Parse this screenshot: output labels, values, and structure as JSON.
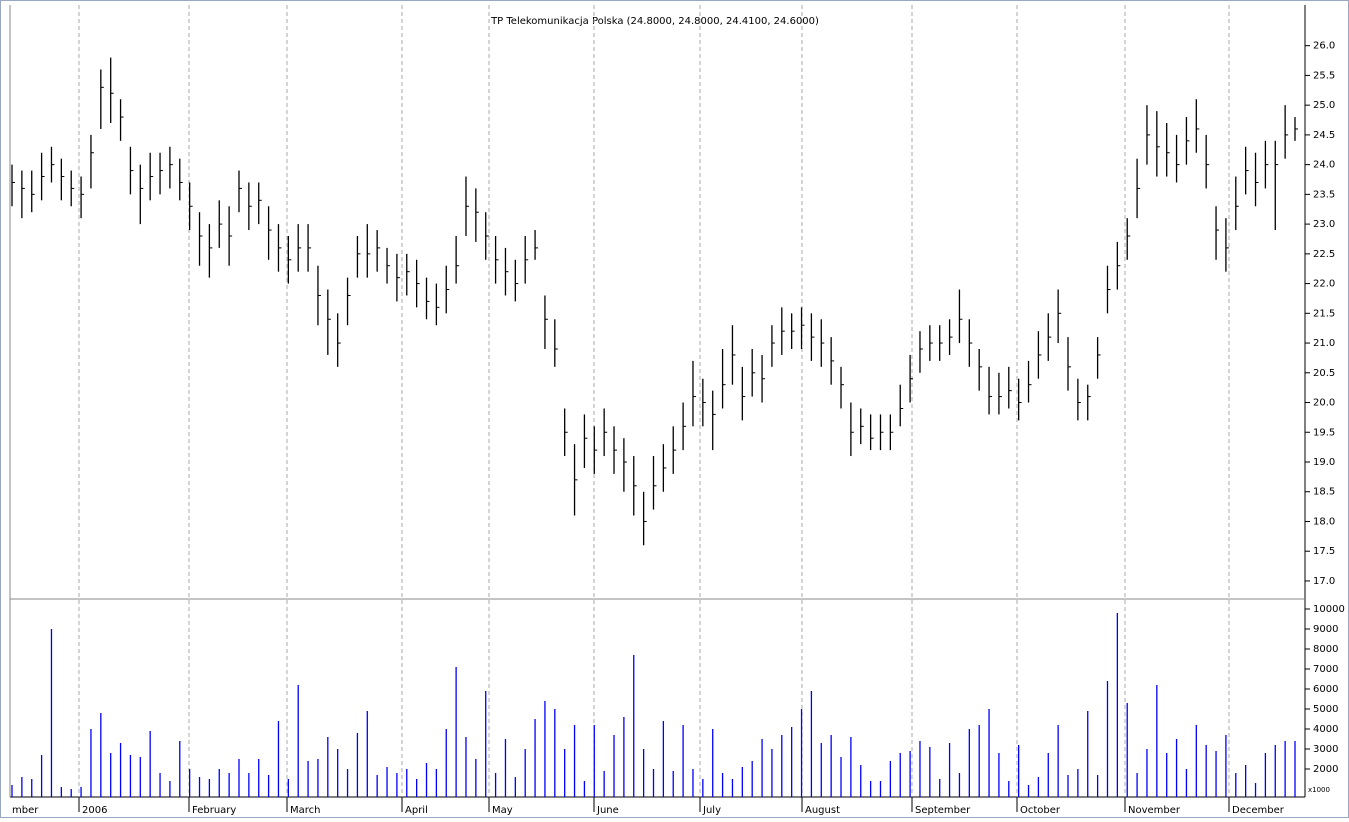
{
  "chart_data": {
    "type": "ohlc",
    "title": "TP Telekomunikacja Polska (24.8000, 24.8000, 24.4100, 24.6000)",
    "x_labels": [
      "mber",
      "2006",
      "February",
      "March",
      "April",
      "May",
      "June",
      "July",
      "August",
      "September",
      "October",
      "November",
      "December"
    ],
    "price_color": "#000000",
    "volume_color": "#0000ff",
    "close": [
      23.7,
      23.6,
      23.5,
      23.8,
      24.0,
      23.8,
      23.6,
      23.5,
      24.2,
      25.3,
      25.2,
      24.8,
      23.9,
      23.6,
      23.8,
      23.9,
      24.0,
      23.7,
      23.3,
      22.8,
      22.6,
      23.0,
      22.8,
      23.6,
      23.3,
      23.4,
      22.9,
      22.6,
      22.4,
      22.6,
      22.6,
      21.8,
      21.4,
      21.0,
      21.8,
      22.5,
      22.5,
      22.6,
      22.3,
      22.1,
      22.2,
      22.0,
      21.7,
      21.6,
      21.9,
      22.3,
      23.3,
      23.2,
      22.8,
      22.4,
      22.2,
      22.0,
      22.4,
      22.6,
      21.4,
      20.9,
      19.5,
      18.7,
      19.4,
      19.2,
      19.5,
      19.2,
      19.0,
      18.6,
      18.0,
      18.6,
      18.9,
      19.2,
      19.6,
      20.1,
      20.0,
      19.8,
      20.3,
      20.8,
      20.1,
      20.5,
      20.4,
      21.0,
      21.2,
      21.2,
      21.3,
      21.1,
      21.0,
      20.7,
      20.3,
      19.5,
      19.6,
      19.4,
      19.5,
      19.5,
      19.9,
      20.4,
      20.9,
      21.0,
      21.0,
      21.1,
      21.4,
      21.0,
      20.6,
      20.1,
      20.1,
      20.2,
      20.0,
      20.3,
      20.8,
      21.1,
      21.5,
      20.6,
      20.0,
      20.1,
      20.8,
      21.9,
      22.3,
      22.8,
      23.6,
      24.5,
      24.3,
      24.2,
      24.0,
      24.4,
      24.6,
      24.0,
      22.9,
      22.6,
      23.3,
      23.9,
      23.7,
      24.0,
      24.0,
      24.5,
      24.6
    ],
    "high": [
      24.0,
      23.9,
      23.9,
      24.2,
      24.3,
      24.1,
      23.9,
      23.8,
      24.5,
      25.6,
      25.8,
      25.1,
      24.3,
      24.0,
      24.2,
      24.2,
      24.3,
      24.1,
      23.7,
      23.2,
      23.0,
      23.4,
      23.3,
      23.9,
      23.7,
      23.7,
      23.3,
      23.0,
      22.8,
      23.0,
      23.0,
      22.3,
      21.9,
      21.5,
      22.1,
      22.8,
      23.0,
      22.9,
      22.6,
      22.5,
      22.5,
      22.4,
      22.1,
      22.0,
      22.3,
      22.8,
      23.8,
      23.6,
      23.2,
      22.8,
      22.6,
      22.4,
      22.8,
      22.9,
      21.8,
      21.4,
      19.9,
      19.3,
      19.8,
      19.6,
      19.9,
      19.6,
      19.4,
      19.1,
      18.5,
      19.1,
      19.3,
      19.6,
      20.0,
      20.7,
      20.4,
      20.2,
      20.9,
      21.3,
      20.6,
      20.9,
      20.8,
      21.3,
      21.6,
      21.5,
      21.6,
      21.5,
      21.4,
      21.1,
      20.6,
      20.0,
      19.9,
      19.8,
      19.8,
      19.8,
      20.3,
      20.8,
      21.2,
      21.3,
      21.3,
      21.4,
      21.9,
      21.4,
      20.9,
      20.6,
      20.5,
      20.6,
      20.4,
      20.7,
      21.2,
      21.5,
      21.9,
      21.1,
      20.4,
      20.3,
      21.1,
      22.3,
      22.7,
      23.1,
      24.1,
      25.0,
      24.9,
      24.7,
      24.5,
      24.8,
      25.1,
      24.5,
      23.3,
      23.1,
      23.8,
      24.3,
      24.2,
      24.4,
      24.4,
      25.0,
      24.8
    ],
    "low": [
      23.3,
      23.1,
      23.2,
      23.4,
      23.7,
      23.4,
      23.3,
      23.1,
      23.6,
      24.6,
      24.7,
      24.4,
      23.5,
      23.0,
      23.4,
      23.5,
      23.6,
      23.4,
      22.9,
      22.3,
      22.1,
      22.6,
      22.3,
      23.2,
      22.9,
      23.0,
      22.4,
      22.2,
      22.0,
      22.2,
      22.2,
      21.3,
      20.8,
      20.6,
      21.3,
      22.1,
      22.1,
      22.2,
      22.0,
      21.7,
      21.8,
      21.6,
      21.4,
      21.3,
      21.5,
      22.0,
      22.8,
      22.7,
      22.4,
      22.0,
      21.8,
      21.7,
      22.0,
      22.4,
      20.9,
      20.6,
      19.1,
      18.1,
      18.9,
      18.8,
      19.1,
      18.8,
      18.5,
      18.1,
      17.6,
      18.2,
      18.5,
      18.8,
      19.2,
      19.6,
      19.6,
      19.2,
      19.9,
      20.3,
      19.7,
      20.1,
      20.0,
      20.6,
      20.8,
      20.9,
      20.9,
      20.7,
      20.6,
      20.3,
      19.9,
      19.1,
      19.3,
      19.2,
      19.2,
      19.2,
      19.6,
      20.0,
      20.5,
      20.7,
      20.7,
      20.8,
      21.0,
      20.6,
      20.2,
      19.8,
      19.8,
      19.9,
      19.7,
      20.0,
      20.4,
      20.7,
      21.0,
      20.2,
      19.7,
      19.7,
      20.4,
      21.5,
      21.9,
      22.4,
      23.1,
      24.0,
      23.8,
      23.8,
      23.7,
      24.0,
      24.2,
      23.6,
      22.4,
      22.2,
      22.9,
      23.5,
      23.3,
      23.6,
      22.9,
      24.1,
      24.4
    ],
    "volume": [
      1200,
      1600,
      1500,
      2700,
      9000,
      1100,
      1000,
      1100,
      4000,
      4800,
      2800,
      3300,
      2700,
      2600,
      3900,
      1800,
      1400,
      3400,
      2000,
      1600,
      1500,
      2000,
      1800,
      2500,
      1800,
      2500,
      1700,
      4400,
      1500,
      6200,
      2400,
      2500,
      3600,
      3000,
      2000,
      3800,
      4900,
      1700,
      2100,
      1800,
      2000,
      1500,
      2300,
      2000,
      4000,
      7100,
      3600,
      2500,
      5900,
      1800,
      3500,
      1600,
      3000,
      4500,
      5400,
      5000,
      3000,
      4200,
      1400,
      4200,
      1900,
      3700,
      4600,
      7700,
      3000,
      2000,
      4400,
      1900,
      4200,
      2000,
      1500,
      4000,
      1800,
      1500,
      2100,
      2400,
      3500,
      3000,
      3700,
      4100,
      5000,
      5900,
      3300,
      3700,
      2600,
      3600,
      2200,
      1400,
      1400,
      2400,
      2800,
      2900,
      3400,
      3100,
      1500,
      3300,
      1800,
      4000,
      4200,
      5000,
      2800,
      1400,
      3200,
      1200,
      1600,
      2800,
      4200,
      1700,
      2000,
      4900,
      1700,
      6400,
      9800,
      5300,
      1800,
      3000,
      6200,
      2800,
      3500,
      2000,
      4200,
      3200,
      2900,
      3700,
      1800,
      2200,
      1300,
      2800,
      3200,
      3400,
      3400
    ],
    "ylim": [
      16.73,
      26.6
    ],
    "yticks": [
      {
        "value": 17,
        "label": "17.0"
      },
      {
        "value": 17.5,
        "label": "17.5"
      },
      {
        "value": 18,
        "label": "18.0"
      },
      {
        "value": 18.5,
        "label": "18.5"
      },
      {
        "value": 19,
        "label": "19.0"
      },
      {
        "value": 19.5,
        "label": "19.5"
      },
      {
        "value": 20,
        "label": "20.0"
      },
      {
        "value": 20.5,
        "label": "20.5"
      },
      {
        "value": 21,
        "label": "21.0"
      },
      {
        "value": 21.5,
        "label": "21.5"
      },
      {
        "value": 22,
        "label": "22.0"
      },
      {
        "value": 22.5,
        "label": "22.5"
      },
      {
        "value": 23,
        "label": "23.0"
      },
      {
        "value": 23.5,
        "label": "23.5"
      },
      {
        "value": 24,
        "label": "24.0"
      },
      {
        "value": 24.5,
        "label": "24.5"
      },
      {
        "value": 25,
        "label": "25.0"
      },
      {
        "value": 25.5,
        "label": "25.5"
      },
      {
        "value": 26,
        "label": "26.0"
      }
    ],
    "y2lim": [
      600,
      10500
    ],
    "y2ticks": [
      2000,
      3000,
      4000,
      5000,
      6000,
      7000,
      8000,
      9000,
      10000
    ],
    "y2_unit": "x1000"
  }
}
